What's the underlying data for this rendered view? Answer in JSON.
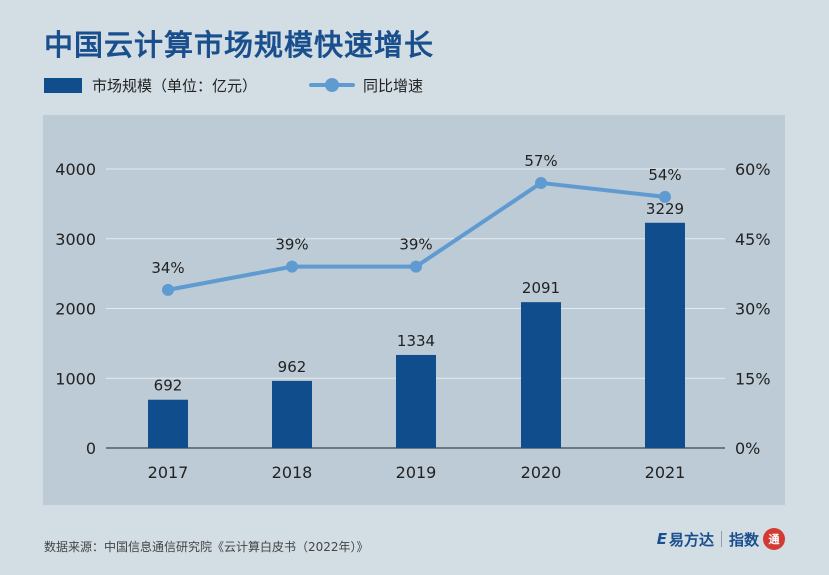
{
  "title": "中国云计算市场规模快速增长",
  "legend": {
    "bar_label": "市场规模（单位：亿元）",
    "line_label": "同比增速"
  },
  "colors": {
    "bar": "#0f4d8c",
    "line": "#5f9bd0",
    "title": "#1a4f8e",
    "plot_bg": "#bccbd5",
    "grid": "#e4ebf0"
  },
  "source": "数据来源：中国信息通信研究院《云计算白皮书（2022年）》",
  "brand": {
    "logo_mark": "E",
    "name": "易方达",
    "product": "指数",
    "seal": "通"
  },
  "chart_data": {
    "type": "bar",
    "categories": [
      "2017",
      "2018",
      "2019",
      "2020",
      "2021"
    ],
    "series": [
      {
        "name": "市场规模（单位：亿元）",
        "type": "bar",
        "axis": "left",
        "values": [
          692,
          962,
          1334,
          2091,
          3229
        ]
      },
      {
        "name": "同比增速",
        "type": "line",
        "axis": "right",
        "values": [
          34,
          39,
          39,
          57,
          54
        ],
        "labels": [
          "34%",
          "39%",
          "39%",
          "57%",
          "54%"
        ]
      }
    ],
    "y_left": {
      "ticks": [
        "0",
        "1000",
        "2000",
        "3000",
        "4000"
      ],
      "range": [
        0,
        4000
      ]
    },
    "y_right": {
      "ticks": [
        "0%",
        "15%",
        "30%",
        "45%",
        "60%"
      ],
      "range": [
        0,
        60
      ]
    },
    "grid": true,
    "legend_position": "top-left"
  }
}
